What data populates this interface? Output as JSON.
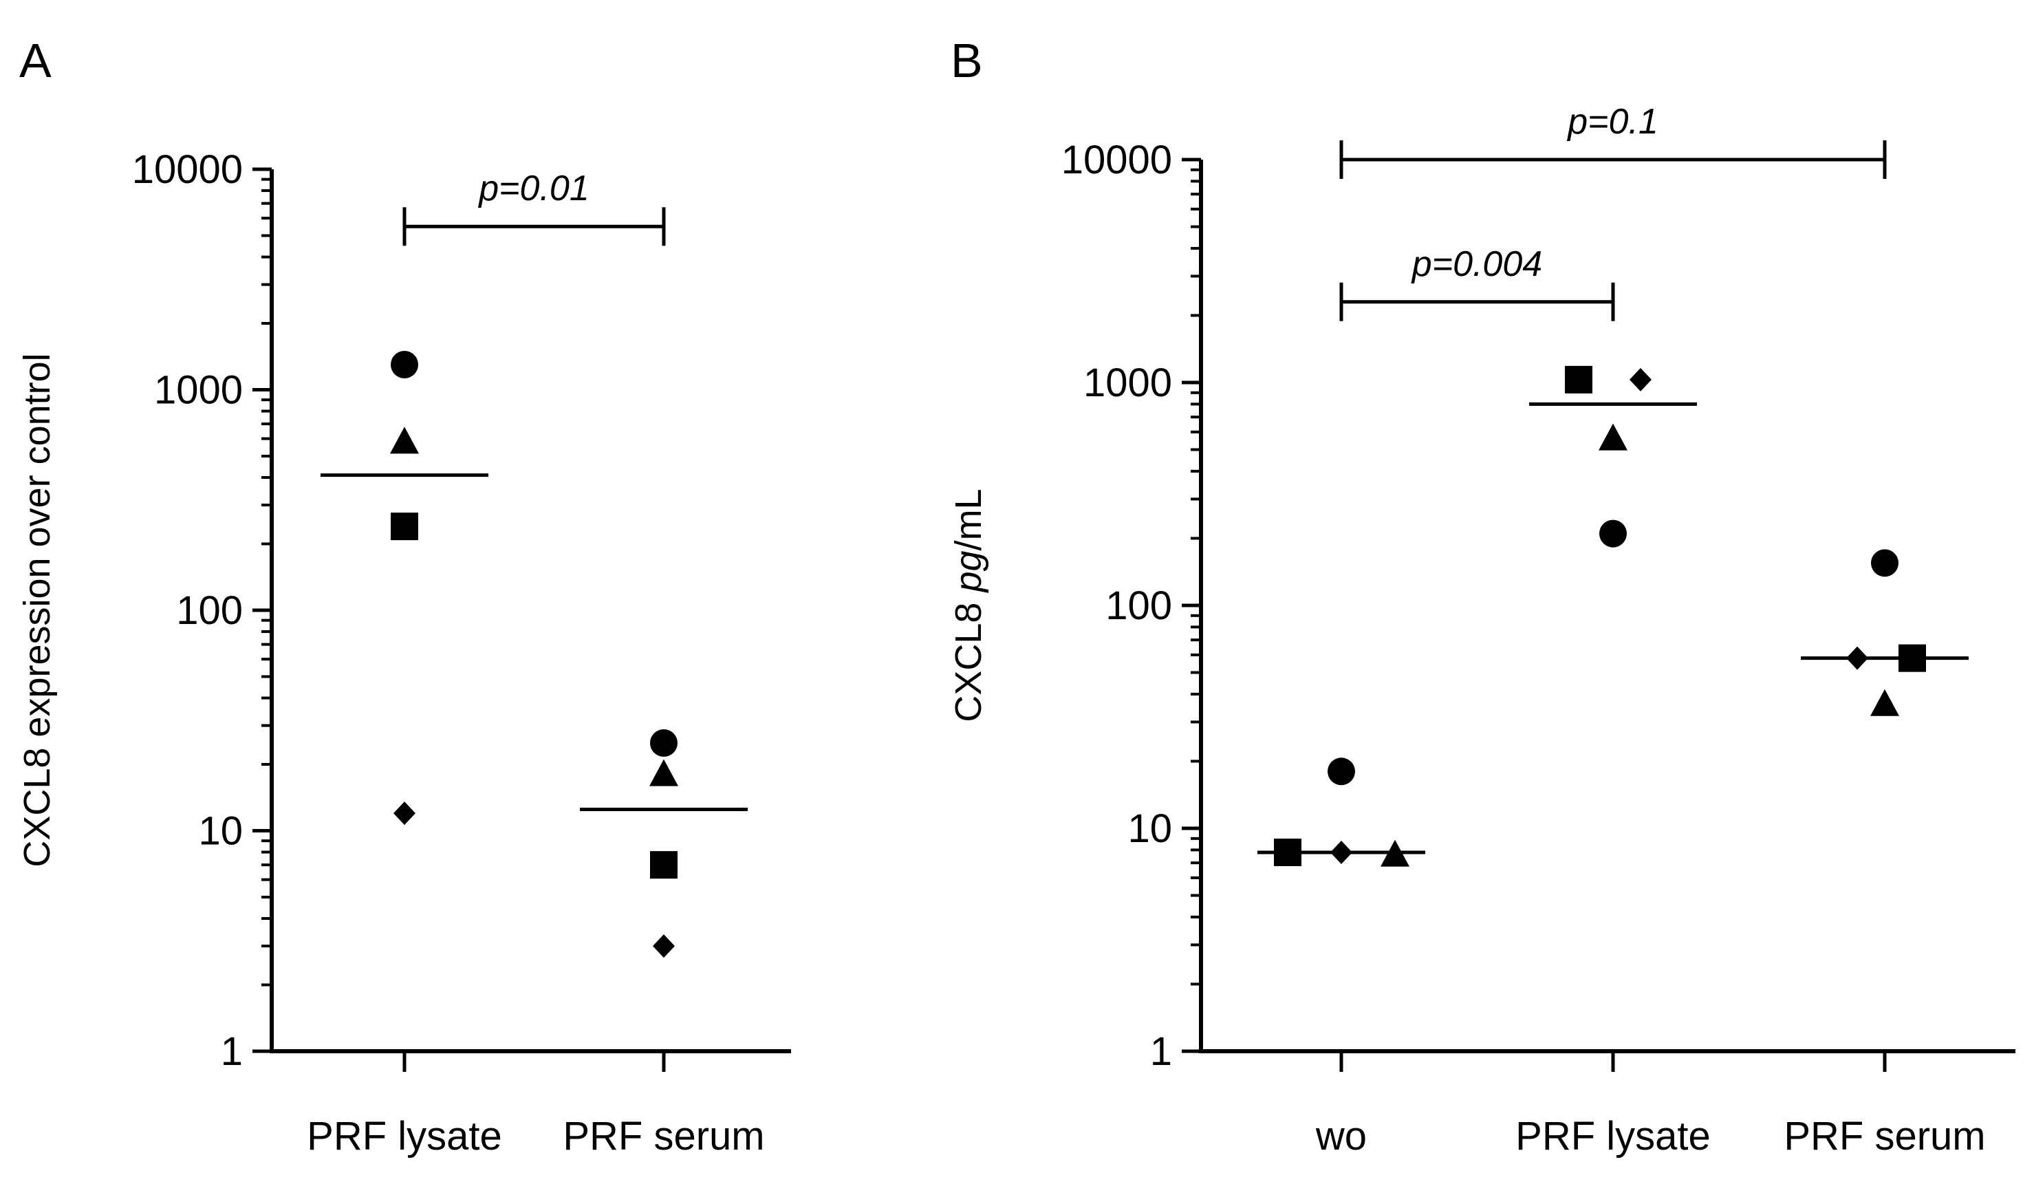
{
  "chart_data": [
    {
      "panel_label": "A",
      "type": "scatter",
      "y_scale": "log",
      "ylim": [
        1,
        10000
      ],
      "yticks": [
        1,
        10,
        100,
        1000,
        10000
      ],
      "ytick_labels": [
        "1",
        "10",
        "100",
        "1000",
        "10000"
      ],
      "ylabel": "CXCL8 expression over control",
      "categories": [
        "PRF lysate",
        "PRF serum"
      ],
      "series": [
        {
          "name": "circle",
          "marker": "circle",
          "values": [
            1300,
            25
          ]
        },
        {
          "name": "triangle",
          "marker": "triangle",
          "values": [
            580,
            18
          ]
        },
        {
          "name": "square",
          "marker": "square",
          "values": [
            240,
            7
          ]
        },
        {
          "name": "diamond",
          "marker": "diamond",
          "values": [
            12,
            3
          ]
        }
      ],
      "means": [
        410,
        12.5
      ],
      "comparisons": [
        {
          "from": "PRF lysate",
          "to": "PRF serum",
          "y": 5500,
          "label": "p=0.01"
        }
      ]
    },
    {
      "panel_label": "B",
      "type": "scatter",
      "y_scale": "log",
      "ylim": [
        1,
        10000
      ],
      "yticks": [
        1,
        10,
        100,
        1000,
        10000
      ],
      "ytick_labels": [
        "1",
        "10",
        "100",
        "1000",
        "10000"
      ],
      "ylabel_parts": [
        "CXCL8 ",
        "pg",
        "/mL"
      ],
      "categories": [
        "wo",
        "PRF lysate",
        "PRF serum"
      ],
      "series": [
        {
          "name": "circle",
          "marker": "circle",
          "values": [
            18,
            210,
            155
          ]
        },
        {
          "name": "square",
          "marker": "square",
          "values": [
            7.8,
            1030,
            58
          ]
        },
        {
          "name": "diamond",
          "marker": "diamond",
          "values": [
            7.8,
            1030,
            58
          ]
        },
        {
          "name": "triangle",
          "marker": "triangle",
          "values": [
            7.6,
            560,
            36
          ]
        }
      ],
      "means": [
        7.8,
        800,
        58
      ],
      "comparisons": [
        {
          "from": "wo",
          "to": "PRF serum",
          "y": 10000,
          "label": "p=0.1"
        },
        {
          "from": "wo",
          "to": "PRF lysate",
          "y": 2300,
          "label": "p=0.004"
        }
      ]
    }
  ]
}
